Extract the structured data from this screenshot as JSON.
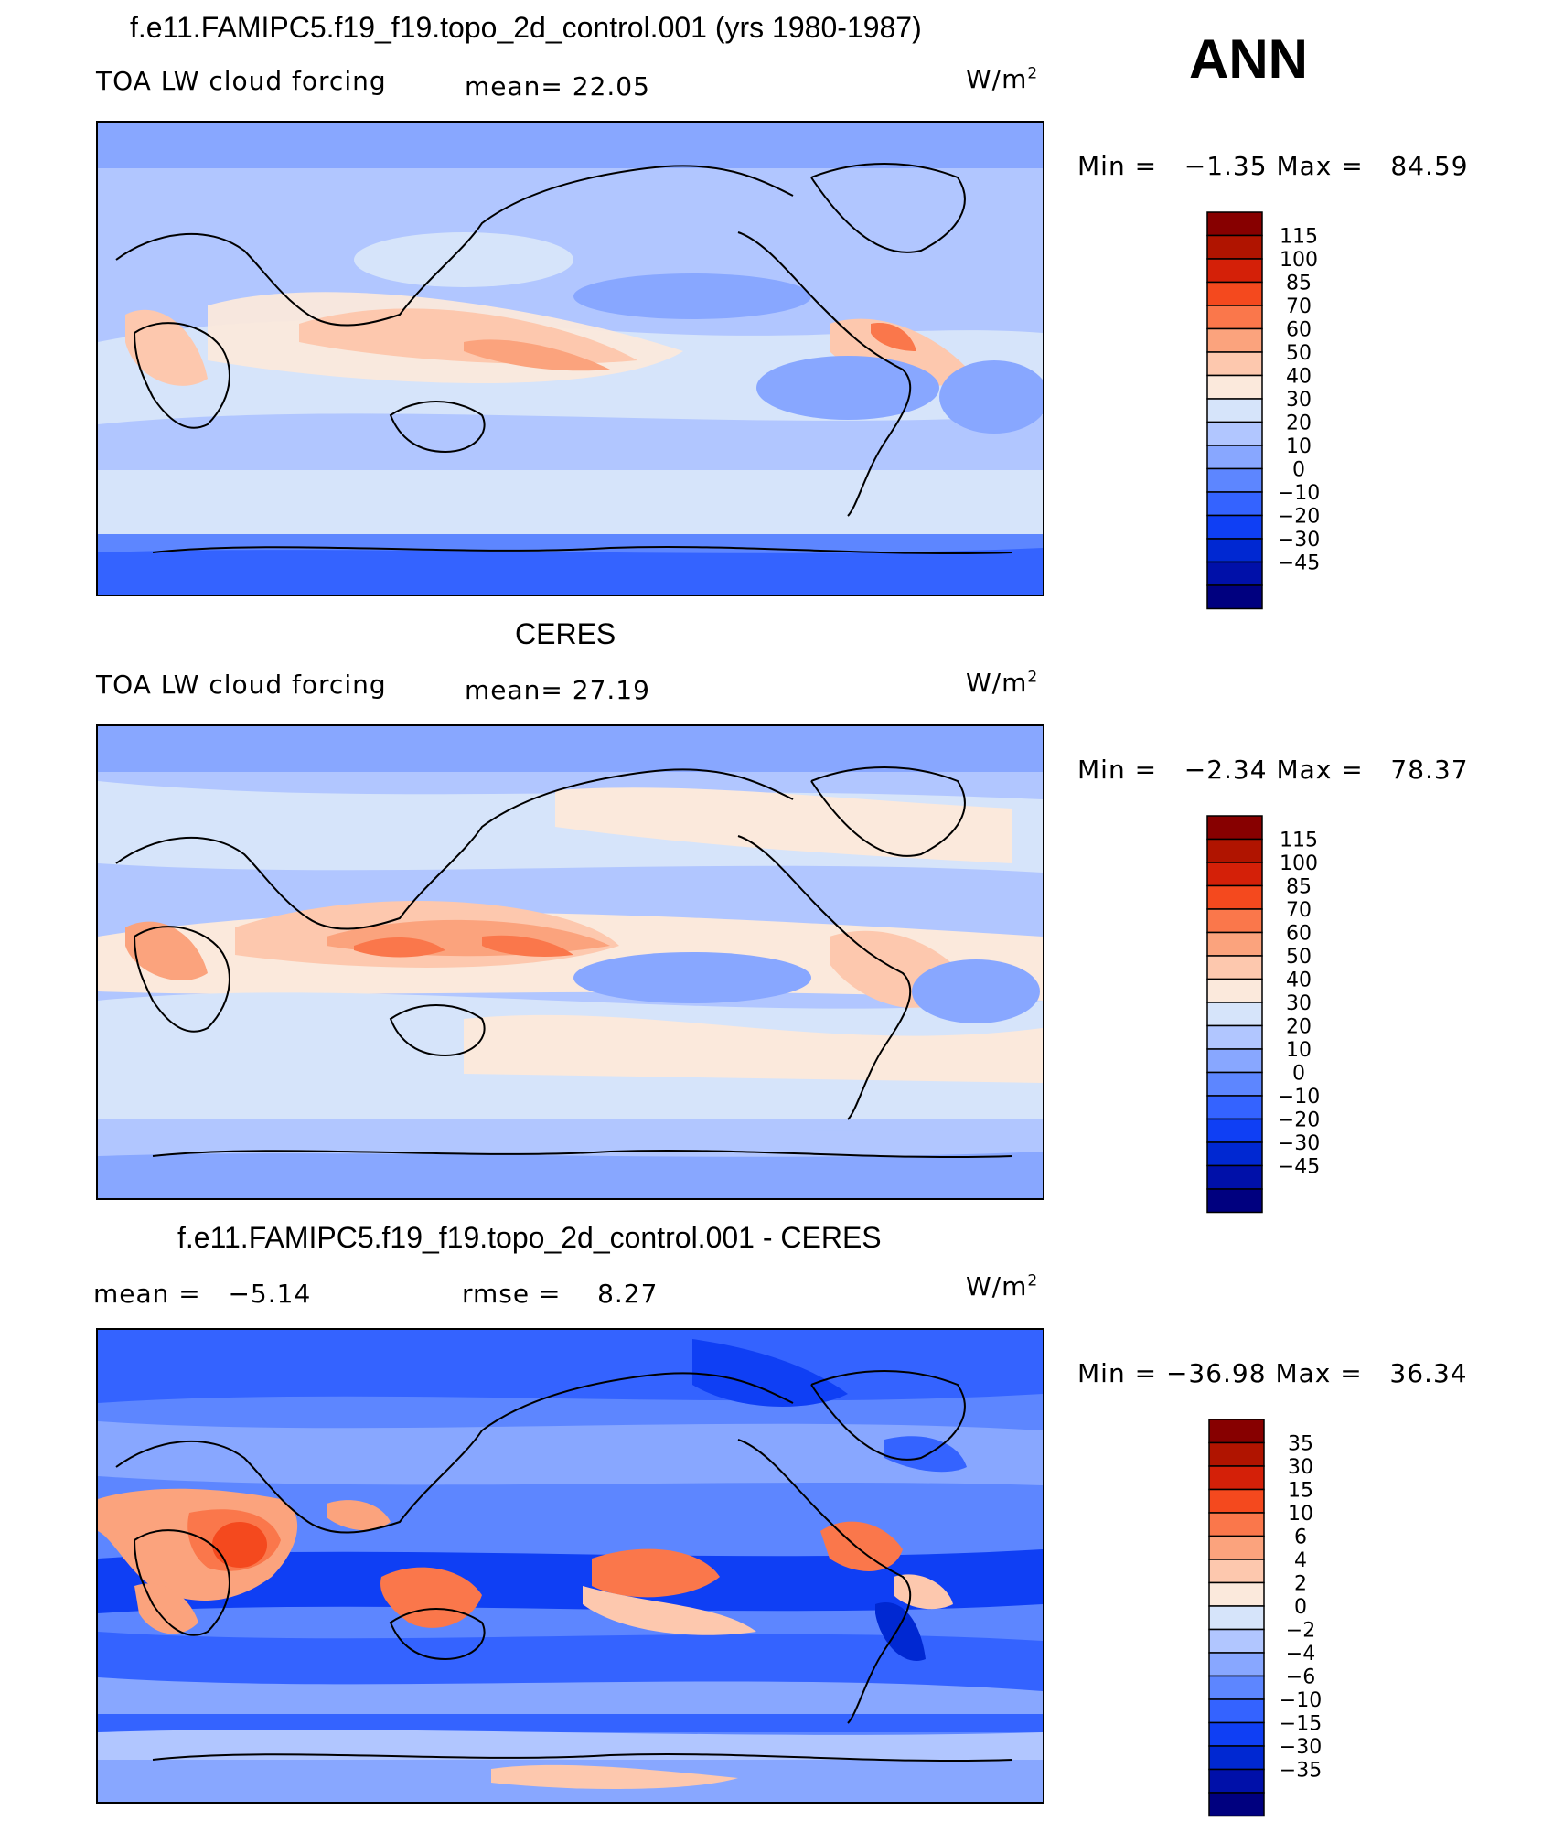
{
  "season": "ANN",
  "colors": {
    "levels": [
      "#00007f",
      "#0010a9",
      "#0028d2",
      "#0f3ff4",
      "#3463ff",
      "#5d86ff",
      "#88a7ff",
      "#b1c6ff",
      "#d6e4fa",
      "#fbe9dc",
      "#fdc8ae",
      "#fba37d",
      "#fa774b",
      "#f4491e",
      "#d42008",
      "#b01400",
      "#870000"
    ],
    "ocean_blue": "#b1c6ff",
    "coast": "#000000"
  },
  "panels": [
    {
      "title": "f.e11.FAMIPC5.f19_f19.topo_2d_control.001 (yrs 1980-1987)",
      "left_label": "TOA LW cloud forcing",
      "center_label": "mean=  22.05",
      "unit": "W/m",
      "unit_exp": "2",
      "minmax": "Min =   −1.35 Max =   84.59",
      "levels": [
        "115",
        "100",
        "85",
        "70",
        "60",
        "50",
        "40",
        "30",
        "20",
        "10",
        "0",
        "−10",
        "−20",
        "−30",
        "−45"
      ]
    },
    {
      "title": "CERES",
      "left_label": "TOA LW cloud forcing",
      "center_label": "mean=  27.19",
      "unit": "W/m",
      "unit_exp": "2",
      "minmax": "Min =   −2.34 Max =   78.37",
      "levels": [
        "115",
        "100",
        "85",
        "70",
        "60",
        "50",
        "40",
        "30",
        "20",
        "10",
        "0",
        "−10",
        "−20",
        "−30",
        "−45"
      ]
    },
    {
      "title": "f.e11.FAMIPC5.f19_f19.topo_2d_control.001 - CERES",
      "left_label": "mean =   −5.14",
      "center_label": "rmse =    8.27",
      "unit": "W/m",
      "unit_exp": "2",
      "minmax": "Min = −36.98 Max =   36.34",
      "levels": [
        "35",
        "30",
        "15",
        "10",
        "6",
        "4",
        "2",
        "0",
        "−2",
        "−4",
        "−6",
        "−10",
        "−15",
        "−30",
        "−35"
      ]
    }
  ]
}
